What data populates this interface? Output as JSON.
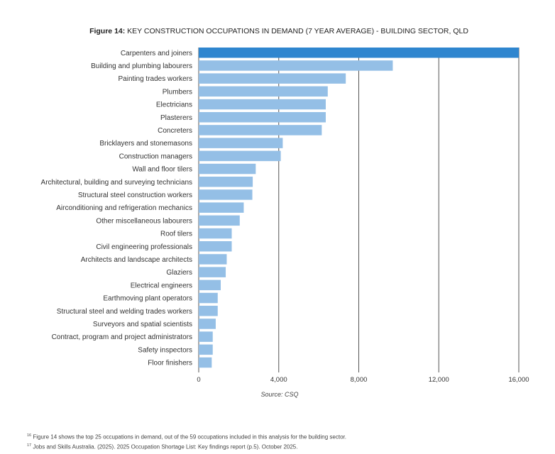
{
  "figure": {
    "title_lead": "Figure 14:",
    "title_rest": "KEY CONSTRUCTION OCCUPATIONS IN DEMAND (7 YEAR AVERAGE) - BUILDING SECTOR, QLD",
    "source": "Source: CSQ"
  },
  "footnotes": [
    {
      "marker": "16",
      "text": "Figure 14 shows the top 25 occupations in demand, out of the 59 occupations included in this analysis for the building sector."
    },
    {
      "marker": "17",
      "text": "Jobs and Skills Australia. (2025). 2025 Occupation Shortage List: Key findings report (p.5). October 2025."
    }
  ],
  "colors": {
    "highlight_bar": "#2f86cf",
    "bar": "#94bfe6",
    "gridline": "#555555",
    "axis_text": "#333333"
  },
  "chart_data": {
    "type": "bar",
    "orientation": "horizontal",
    "title": "KEY CONSTRUCTION OCCUPATIONS IN DEMAND (7 YEAR AVERAGE) - BUILDING SECTOR, QLD",
    "xlabel": "",
    "ylabel": "",
    "xlim": [
      0,
      16000
    ],
    "xticks": [
      0,
      4000,
      8000,
      12000,
      16000
    ],
    "xtick_labels": [
      "0",
      "4,000",
      "8,000",
      "12,000",
      "16,000"
    ],
    "grid": true,
    "legend": "none",
    "highlight_index": 0,
    "categories": [
      "Carpenters and joiners",
      "Building and plumbing labourers",
      "Painting trades workers",
      "Plumbers",
      "Electricians",
      "Plasterers",
      "Concreters",
      "Bricklayers and stonemasons",
      "Construction managers",
      "Wall and floor tilers",
      "Architectural, building and surveying technicians",
      "Structural steel construction workers",
      "Airconditioning and refrigeration mechanics",
      "Other miscellaneous labourers",
      "Roof tilers",
      "Civil engineering professionals",
      "Architects and landscape architects",
      "Glaziers",
      "Electrical engineers",
      "Earthmoving plant operators",
      "Structural steel and welding trades workers",
      "Surveyors and spatial scientists",
      "Contract, program and project administrators",
      "Safety inspectors",
      "Floor finishers"
    ],
    "values": [
      16000,
      9700,
      7350,
      6450,
      6350,
      6350,
      6150,
      4200,
      4100,
      2850,
      2700,
      2680,
      2250,
      2050,
      1650,
      1650,
      1400,
      1350,
      1100,
      950,
      950,
      850,
      700,
      700,
      650
    ]
  }
}
